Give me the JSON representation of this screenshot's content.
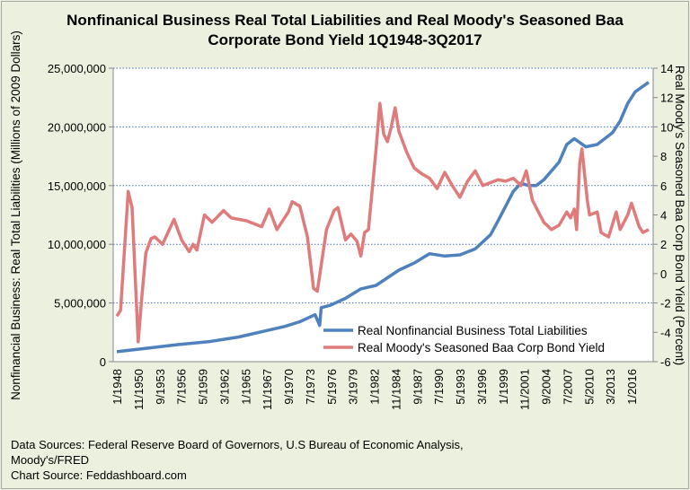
{
  "chart_data": {
    "type": "line",
    "title": "Nonfinanical  Business Real Total Liabilities and Real Moody's Seasoned Baa Corporate Bond Yield 1Q1948-3Q2017",
    "title_lines": [
      "Nonfinanical  Business Real Total Liabilities and Real Moody's Seasoned Baa",
      "Corporate Bond Yield 1Q1948-3Q2017"
    ],
    "ylabel": "Nonfinancial Business:  Real Total Liabilities (Millions of 2009 Dollars)",
    "y2label": "Real Moody's Seasoned Baa Corp Bond Yield (Percent)",
    "ylim": [
      0,
      25000000
    ],
    "y2lim": [
      -6,
      14
    ],
    "yticks": [
      "0",
      "5,000,000",
      "10,000,000",
      "15,000,000",
      "20,000,000",
      "25,000,000"
    ],
    "y2ticks": [
      "-6",
      "-4",
      "-2",
      "0",
      "2",
      "4",
      "6",
      "8",
      "10",
      "12",
      "14"
    ],
    "xticks": [
      "1/1948",
      "11/1950",
      "9/1953",
      "7/1956",
      "5/1959",
      "3/1962",
      "1/1965",
      "11/1967",
      "9/1970",
      "7/1973",
      "5/1976",
      "3/1979",
      "1/1982",
      "11/1984",
      "9/1987",
      "7/1990",
      "5/1993",
      "3/1996",
      "1/1999",
      "11/2001",
      "9/2004",
      "7/2007",
      "5/2010",
      "3/2013",
      "1/2016"
    ],
    "xlim": [
      1948,
      2017.75
    ],
    "grid": true,
    "legend_position": "bottom-right",
    "series": [
      {
        "name": "Real Nonfinancial Business Total Liabilities",
        "axis": "left",
        "color": "#4f81bd",
        "x": [
          1948,
          1952,
          1956,
          1960,
          1964,
          1968,
          1970,
          1972,
          1974,
          1974.6,
          1974.8,
          1976,
          1978,
          1980,
          1982,
          1985,
          1987,
          1989,
          1991,
          1993,
          1995,
          1997,
          1998,
          2000,
          2001,
          2002,
          2003,
          2004,
          2006,
          2007,
          2008,
          2009.5,
          2011,
          2013,
          2014,
          2015,
          2016,
          2017.75
        ],
        "values": [
          850000,
          1150000,
          1450000,
          1700000,
          2100000,
          2700000,
          3000000,
          3400000,
          4000000,
          3100000,
          4600000,
          4800000,
          5400000,
          6200000,
          6500000,
          7800000,
          8400000,
          9200000,
          9000000,
          9100000,
          9600000,
          10800000,
          12000000,
          14500000,
          15200000,
          15000000,
          15000000,
          15500000,
          17000000,
          18500000,
          19000000,
          18300000,
          18500000,
          19500000,
          20500000,
          22000000,
          23000000,
          23800000
        ]
      },
      {
        "name": "Real Moody's Seasoned Baa Corp Bond Yield",
        "axis": "right",
        "color": "#e07b7b",
        "x": [
          1948,
          1948.5,
          1949.5,
          1950,
          1950.8,
          1951.3,
          1951.8,
          1952.5,
          1953,
          1954,
          1955.5,
          1956.5,
          1957.5,
          1958,
          1958.5,
          1959.5,
          1960.5,
          1962,
          1963,
          1965,
          1967,
          1968,
          1969,
          1970.5,
          1971,
          1972,
          1973,
          1973.8,
          1974.3,
          1975.5,
          1976.5,
          1977,
          1978,
          1978.7,
          1979.5,
          1980,
          1980.5,
          1981,
          1982,
          1982.5,
          1983,
          1983.5,
          1984,
          1984.5,
          1985,
          1986,
          1987,
          1988,
          1989,
          1990,
          1991,
          1992,
          1993,
          1994,
          1995,
          1996,
          1997,
          1998,
          1999,
          2000,
          2001,
          2001.7,
          2002.5,
          2003,
          2004,
          2005,
          2006,
          2007,
          2007.5,
          2008,
          2008.3,
          2008.7,
          2009,
          2009.7,
          2010,
          2011,
          2011.5,
          2012.5,
          2013.5,
          2014,
          2015,
          2015.5,
          2016.5,
          2017,
          2017.75
        ],
        "values": [
          -2.9,
          -2.5,
          5.6,
          4.5,
          -4.65,
          -1.5,
          1.4,
          2.4,
          2.5,
          2.0,
          3.7,
          2.3,
          1.5,
          2.0,
          1.6,
          4.0,
          3.5,
          4.3,
          3.8,
          3.6,
          3.2,
          4.4,
          3.0,
          4.2,
          4.9,
          4.6,
          2.5,
          -1.0,
          -1.2,
          3.0,
          4.3,
          4.5,
          2.3,
          2.7,
          2.2,
          1.2,
          2.8,
          3.0,
          8.5,
          11.6,
          9.5,
          9.0,
          10.0,
          11.3,
          9.7,
          8.3,
          7.2,
          6.8,
          6.5,
          5.8,
          6.9,
          6.0,
          5.2,
          6.3,
          7.0,
          6.0,
          6.2,
          6.4,
          6.3,
          6.5,
          6.0,
          7.0,
          5.0,
          4.5,
          3.5,
          3.0,
          3.3,
          4.2,
          3.8,
          4.4,
          3.0,
          7.5,
          8.5,
          5.0,
          4.0,
          4.2,
          2.8,
          2.5,
          4.2,
          3.0,
          4.0,
          4.8,
          3.2,
          2.8,
          3.0
        ]
      }
    ]
  },
  "sources": {
    "line1": "Data Sources: Federal Reserve Board of Governors, U.S Bureau of Economic Analysis,",
    "line2": "Moody's/FRED",
    "line3": "Chart Source: Feddashboard.com"
  }
}
